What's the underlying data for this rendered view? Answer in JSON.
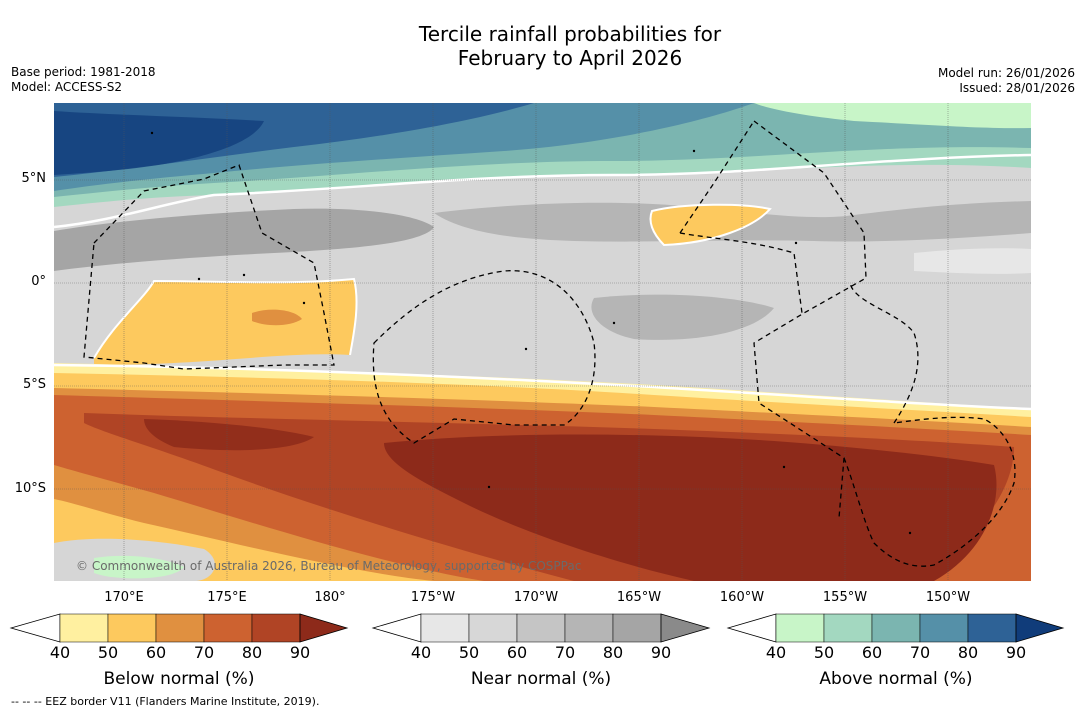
{
  "title_line1": "Tercile rainfall probabilities for",
  "title_line2": "February to April 2026",
  "base_period": "Base period: 1981-2018",
  "model": "Model: ACCESS-S2",
  "model_run": "Model run: 26/01/2026",
  "issued": "Issued: 28/01/2026",
  "copyright": "© Commonwealth of Australia 2026, Bureau of Meteorology, supported by COSPPac",
  "lat_labels": [
    "5°N",
    "0°",
    "5°S",
    "10°S"
  ],
  "lon_labels": [
    "170°E",
    "175°E",
    "180°",
    "175°W",
    "170°W",
    "165°W",
    "160°W",
    "155°W",
    "150°W"
  ],
  "colorbars": [
    {
      "title": "Below normal (%)",
      "ticks": [
        "40",
        "50",
        "60",
        "70",
        "80",
        "90"
      ],
      "colors": [
        "#fff0a0",
        "#fdc95e",
        "#e09040",
        "#cd6230",
        "#b04425",
        "#8d2a1a"
      ]
    },
    {
      "title": "Near normal (%)",
      "ticks": [
        "40",
        "50",
        "60",
        "70",
        "80",
        "90"
      ],
      "colors": [
        "#e7e7e7",
        "#d7d7d7",
        "#c5c5c5",
        "#b5b5b5",
        "#a5a5a5",
        "#8a8a8a"
      ]
    },
    {
      "title": "Above normal (%)",
      "ticks": [
        "40",
        "50",
        "60",
        "70",
        "80",
        "90"
      ],
      "colors": [
        "#c8f5c8",
        "#a3d8c0",
        "#7bb5b0",
        "#5590a8",
        "#2e6296",
        "#103c7a"
      ]
    }
  ],
  "eez_credit": "--  --  -- EEZ border V11 (Flanders Marine Institute, 2019)."
}
